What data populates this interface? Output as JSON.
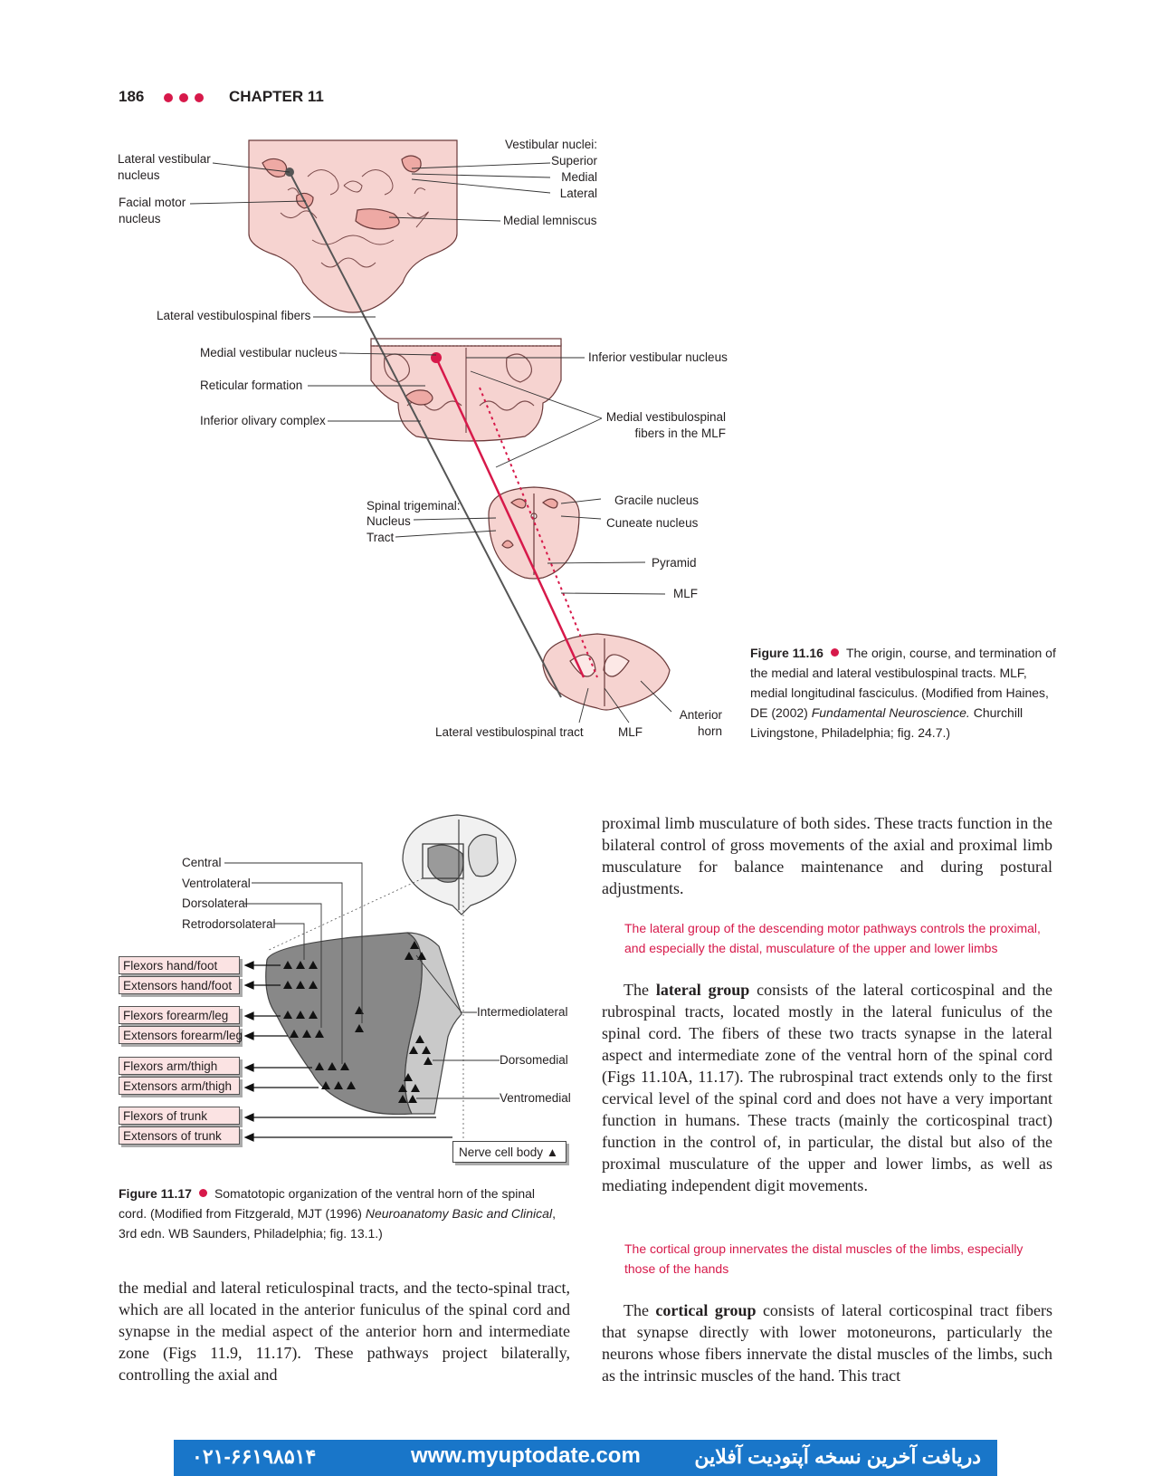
{
  "header": {
    "page_number": "186",
    "chapter": "CHAPTER 11"
  },
  "fig16": {
    "labels": {
      "lateral_vestibular_nucleus": "Lateral vestibular\nnucleus",
      "facial_motor_nucleus": "Facial motor\nnucleus",
      "vestibular_nuclei": "Vestibular nuclei:",
      "superior": "Superior",
      "medial": "Medial",
      "lateral": "Lateral",
      "medial_lemniscus": "Medial lemniscus",
      "lateral_vestibulospinal_fibers": "Lateral vestibulospinal fibers",
      "medial_vestibular_nucleus": "Medial vestibular nucleus",
      "reticular_formation": "Reticular formation",
      "inferior_olivary_complex": "Inferior olivary complex",
      "inferior_vestibular_nucleus": "Inferior vestibular nucleus",
      "medial_vestibulospinal_fibers": "Medial vestibulospinal\nfibers in the MLF",
      "spinal_trigeminal": "Spinal trigeminal:",
      "nucleus": "Nucleus",
      "tract": "Tract",
      "gracile_nucleus": "Gracile nucleus",
      "cuneate_nucleus": "Cuneate nucleus",
      "pyramid": "Pyramid",
      "mlf": "MLF",
      "lateral_vestibulospinal_tract": "Lateral vestibulospinal tract",
      "mlf_bottom": "MLF",
      "anterior_horn": "Anterior\nhorn"
    },
    "caption": {
      "number": "Figure 11.16",
      "text_before_italic": "The origin, course, and termination of the medial and lateral vestibulospinal tracts. MLF, medial longitudinal fasciculus. (Modified from Haines, DE (2002) ",
      "italic": "Fundamental Neuroscience.",
      "text_after_italic": " Churchill Livingstone, Philadelphia; fig. 24.7.)"
    }
  },
  "fig17": {
    "top_labels": [
      "Central",
      "Ventrolateral",
      "Dorsolateral",
      "Retrodorsolateral"
    ],
    "boxes": [
      "Flexors hand/foot",
      "Extensors hand/foot",
      "Flexors forearm/leg",
      "Extensors forearm/leg",
      "Flexors arm/thigh",
      "Extensors arm/thigh",
      "Flexors of trunk",
      "Extensors of trunk"
    ],
    "right_labels": {
      "intermediolateral": "Intermediolateral",
      "dorsomedial": "Dorsomedial",
      "ventromedial": "Ventromedial"
    },
    "legend": "Nerve cell body ▲",
    "caption": {
      "number": "Figure 11.17",
      "text_before_italic": "Somatotopic organization of the ventral horn of the spinal cord. (Modified from Fitzgerald, MJT (1996) ",
      "italic": "Neuroanatomy Basic and Clinical",
      "text_after_italic": ", 3rd edn. WB Saunders, Philadelphia; fig. 13.1.)"
    }
  },
  "left_column": {
    "paragraph": "the medial and lateral reticulospinal tracts, and the tecto-spinal tract, which are all located in the anterior funiculus of the spinal cord and synapse in the medial aspect of the anterior horn and intermediate zone (Figs 11.9, 11.17). These pathways project bilaterally, controlling the axial and"
  },
  "right_column": {
    "p1": "proximal limb musculature of both sides. These tracts function in the bilateral control of gross movements of the axial and proximal limb musculature for balance maintenance and during postural adjustments.",
    "pull1": "The lateral group of the descending motor pathways controls the proximal, and especially the distal, musculature of the upper and lower limbs",
    "p2_before": "The ",
    "p2_bold": "lateral group",
    "p2_after": " consists of the lateral corticospinal and the rubrospinal tracts, located mostly in the lateral funiculus of the spinal cord. The fibers of these two tracts synapse in the lateral aspect and intermediate zone of the ventral horn of the spinal cord (Figs 11.10A, 11.17). The rubrospinal tract extends only to the first cervical level of the spinal cord and does not have a very important function in humans. These tracts (mainly the corticospinal tract) function in the control of, in particular, the distal but also of the proximal musculature of the upper and lower limbs, as well as mediating independent digit movements.",
    "pull2": "The cortical group innervates the distal muscles of the limbs, especially those of the hands",
    "p3_before": "The ",
    "p3_bold": "cortical group",
    "p3_after": " consists of lateral corticospinal tract fibers that synapse directly with lower motoneurons, particularly the neurons whose fibers innervate the distal muscles of the limbs, such as the intrinsic muscles of the hand. This tract"
  },
  "banner": {
    "phone": "۰۲۱-۶۶۱۹۸۵۱۴",
    "url": "www.myuptodate.com",
    "persian": "دریافت آخرین نسخه آپتودیت آفلاین",
    "color": "#1976c9"
  },
  "colors": {
    "accent": "#d7194a",
    "tissue": "#f6d3d0",
    "tissue_dark": "#eea9a4"
  }
}
